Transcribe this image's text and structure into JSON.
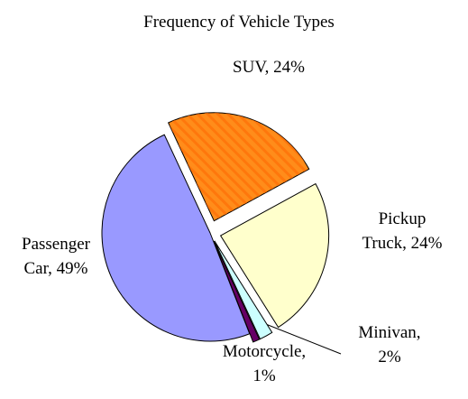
{
  "chart_data": {
    "type": "pie",
    "title": "Frequency of Vehicle Types",
    "categories": [
      "SUV",
      "Pickup Truck",
      "Minivan",
      "Motorcycle",
      "Passenger Car"
    ],
    "values": [
      24,
      24,
      2,
      1,
      49
    ],
    "value_labels": [
      "SUV, 24%",
      "Pickup\nTruck, 24%",
      "Minivan,\n2%",
      "Motorcycle,\n1%",
      "Passenger\nCar, 49%"
    ],
    "colors": [
      "#ff8c1a",
      "#ffffcc",
      "#ccffff",
      "#660066",
      "#9999ff"
    ]
  }
}
